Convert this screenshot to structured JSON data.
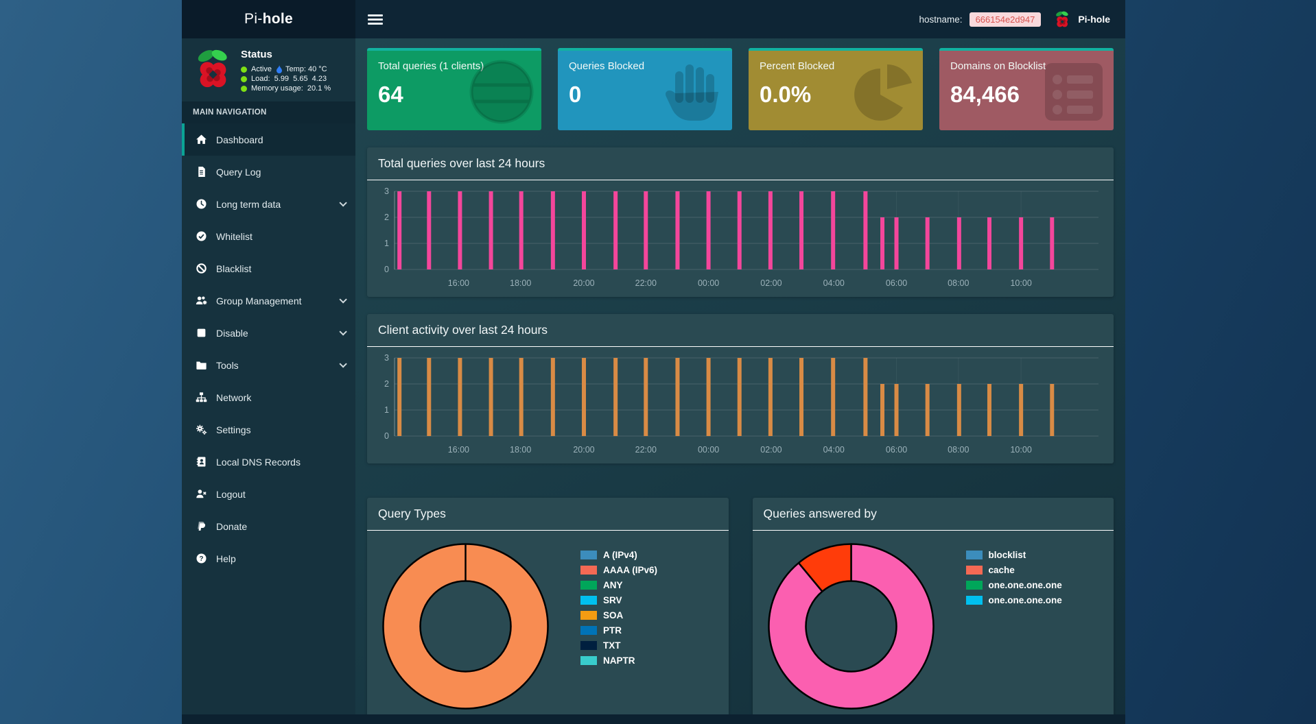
{
  "navbar": {
    "brand_pi": "Pi-",
    "brand_hole": "hole",
    "hostname_label": "hostname:",
    "hostname_value": "666154e2d947",
    "right_brand": "Pi-hole"
  },
  "sidebar": {
    "status": {
      "title": "Status",
      "rows": [
        {
          "text": "Active",
          "flame": true,
          "extra": "Temp: 40 °C"
        },
        {
          "text": "Load:  5.99  5.65  4.23"
        },
        {
          "text": "Memory usage:  20.1 %"
        }
      ]
    },
    "nav_header": "MAIN NAVIGATION",
    "items": [
      {
        "label": "Dashboard",
        "icon": "home-icon",
        "active": true
      },
      {
        "label": "Query Log",
        "icon": "file-icon"
      },
      {
        "label": "Long term data",
        "icon": "clock-icon",
        "chevron": true
      },
      {
        "label": "Whitelist",
        "icon": "check-circle-icon"
      },
      {
        "label": "Blacklist",
        "icon": "ban-icon"
      },
      {
        "label": "Group Management",
        "icon": "users-gear-icon",
        "chevron": true
      },
      {
        "label": "Disable",
        "icon": "stop-icon",
        "chevron": true
      },
      {
        "label": "Tools",
        "icon": "folder-icon",
        "chevron": true
      },
      {
        "label": "Network",
        "icon": "sitemap-icon"
      },
      {
        "label": "Settings",
        "icon": "gears-icon"
      },
      {
        "label": "Local DNS Records",
        "icon": "address-book-icon"
      },
      {
        "label": "Logout",
        "icon": "user-times-icon"
      },
      {
        "label": "Donate",
        "icon": "paypal-icon"
      },
      {
        "label": "Help",
        "icon": "question-icon"
      }
    ]
  },
  "cards": [
    {
      "title": "Total queries (1 clients)",
      "value": "64",
      "color": "#0d9b64",
      "icon": "globe-icon"
    },
    {
      "title": "Queries Blocked",
      "value": "0",
      "color": "#2195bd",
      "icon": "hand-icon"
    },
    {
      "title": "Percent Blocked",
      "value": "0.0%",
      "color": "#a18c33",
      "icon": "pie-icon"
    },
    {
      "title": "Domains on Blocklist",
      "value": "84,466",
      "color": "#9f5a63",
      "icon": "list-icon"
    }
  ],
  "theme": {
    "card_top_accent": "#12b2a0",
    "sidebar_active_accent": "#0ba394",
    "status_green": "#7ee015",
    "badge_bg": "#f9d9dc",
    "badge_text": "#d9534f",
    "panel_bg": "#2a4a52"
  },
  "chart_data": [
    {
      "type": "bar",
      "title": "Total queries over last 24 hours",
      "bar_color": "#f4469b",
      "ylim": [
        0,
        3
      ],
      "yticks": [
        0,
        1,
        2,
        3
      ],
      "grid": true,
      "xticks": [
        {
          "pos": 0.091,
          "label": "16:00"
        },
        {
          "pos": 0.179,
          "label": "18:00"
        },
        {
          "pos": 0.269,
          "label": "20:00"
        },
        {
          "pos": 0.357,
          "label": "22:00"
        },
        {
          "pos": 0.446,
          "label": "00:00"
        },
        {
          "pos": 0.535,
          "label": "02:00"
        },
        {
          "pos": 0.624,
          "label": "04:00"
        },
        {
          "pos": 0.713,
          "label": "06:00"
        },
        {
          "pos": 0.801,
          "label": "08:00"
        },
        {
          "pos": 0.89,
          "label": "10:00"
        }
      ],
      "bars": [
        {
          "pos": 0.007,
          "value": 3
        },
        {
          "pos": 0.049,
          "value": 3
        },
        {
          "pos": 0.093,
          "value": 3
        },
        {
          "pos": 0.137,
          "value": 3
        },
        {
          "pos": 0.18,
          "value": 3
        },
        {
          "pos": 0.225,
          "value": 3
        },
        {
          "pos": 0.269,
          "value": 3
        },
        {
          "pos": 0.314,
          "value": 3
        },
        {
          "pos": 0.357,
          "value": 3
        },
        {
          "pos": 0.402,
          "value": 3
        },
        {
          "pos": 0.446,
          "value": 3
        },
        {
          "pos": 0.49,
          "value": 3
        },
        {
          "pos": 0.534,
          "value": 3
        },
        {
          "pos": 0.578,
          "value": 3
        },
        {
          "pos": 0.623,
          "value": 3
        },
        {
          "pos": 0.669,
          "value": 3
        },
        {
          "pos": 0.693,
          "value": 2
        },
        {
          "pos": 0.713,
          "value": 2
        },
        {
          "pos": 0.757,
          "value": 2
        },
        {
          "pos": 0.802,
          "value": 2
        },
        {
          "pos": 0.845,
          "value": 2
        },
        {
          "pos": 0.89,
          "value": 2
        },
        {
          "pos": 0.934,
          "value": 2
        }
      ]
    },
    {
      "type": "bar",
      "title": "Client activity over last 24 hours",
      "bar_color": "#d98b45",
      "ylim": [
        0,
        3
      ],
      "yticks": [
        0,
        1,
        2,
        3
      ],
      "grid": true,
      "xticks": [
        {
          "pos": 0.091,
          "label": "16:00"
        },
        {
          "pos": 0.179,
          "label": "18:00"
        },
        {
          "pos": 0.269,
          "label": "20:00"
        },
        {
          "pos": 0.357,
          "label": "22:00"
        },
        {
          "pos": 0.446,
          "label": "00:00"
        },
        {
          "pos": 0.535,
          "label": "02:00"
        },
        {
          "pos": 0.624,
          "label": "04:00"
        },
        {
          "pos": 0.713,
          "label": "06:00"
        },
        {
          "pos": 0.801,
          "label": "08:00"
        },
        {
          "pos": 0.89,
          "label": "10:00"
        }
      ],
      "bars": [
        {
          "pos": 0.007,
          "value": 3
        },
        {
          "pos": 0.049,
          "value": 3
        },
        {
          "pos": 0.093,
          "value": 3
        },
        {
          "pos": 0.137,
          "value": 3
        },
        {
          "pos": 0.18,
          "value": 3
        },
        {
          "pos": 0.225,
          "value": 3
        },
        {
          "pos": 0.269,
          "value": 3
        },
        {
          "pos": 0.314,
          "value": 3
        },
        {
          "pos": 0.357,
          "value": 3
        },
        {
          "pos": 0.402,
          "value": 3
        },
        {
          "pos": 0.446,
          "value": 3
        },
        {
          "pos": 0.49,
          "value": 3
        },
        {
          "pos": 0.534,
          "value": 3
        },
        {
          "pos": 0.578,
          "value": 3
        },
        {
          "pos": 0.623,
          "value": 3
        },
        {
          "pos": 0.669,
          "value": 3
        },
        {
          "pos": 0.693,
          "value": 2
        },
        {
          "pos": 0.713,
          "value": 2
        },
        {
          "pos": 0.757,
          "value": 2
        },
        {
          "pos": 0.802,
          "value": 2
        },
        {
          "pos": 0.845,
          "value": 2
        },
        {
          "pos": 0.89,
          "value": 2
        },
        {
          "pos": 0.934,
          "value": 2
        }
      ]
    },
    {
      "type": "pie",
      "title": "Query Types",
      "donut": true,
      "slices": [
        {
          "fraction": 1.0,
          "color": "#f88c52"
        }
      ],
      "legend_position": "right",
      "legend": [
        {
          "label": "A (IPv4)",
          "color": "#3c8dbc"
        },
        {
          "label": "AAAA (IPv6)",
          "color": "#f56954"
        },
        {
          "label": "ANY",
          "color": "#00a65a"
        },
        {
          "label": "SRV",
          "color": "#00c0ef"
        },
        {
          "label": "SOA",
          "color": "#f39c12"
        },
        {
          "label": "PTR",
          "color": "#0073b7"
        },
        {
          "label": "TXT",
          "color": "#001f3f"
        },
        {
          "label": "NAPTR",
          "color": "#39cccc"
        }
      ]
    },
    {
      "type": "pie",
      "title": "Queries answered by",
      "donut": true,
      "slices": [
        {
          "fraction": 0.89,
          "color": "#fb5fb0"
        },
        {
          "fraction": 0.11,
          "color": "#ff3c0a"
        }
      ],
      "legend_position": "right",
      "legend": [
        {
          "label": "blocklist",
          "color": "#3c8dbc"
        },
        {
          "label": "cache",
          "color": "#f56954"
        },
        {
          "label": "one.one.one.one",
          "color": "#00a65a"
        },
        {
          "label": "one.one.one.one",
          "color": "#00c0ef"
        }
      ]
    }
  ]
}
